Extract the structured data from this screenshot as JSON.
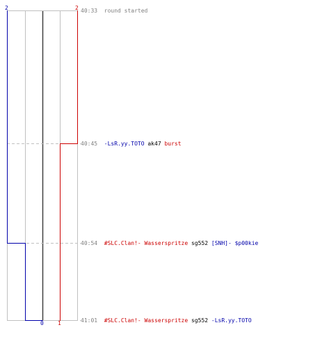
{
  "colors": {
    "blue": "#0000aa",
    "red": "#cc0000",
    "gray": "#808080",
    "grid": "#c0c0c0",
    "center": "#404040"
  },
  "scores": {
    "top_left": "2",
    "top_right": "2",
    "bottom_left": "0",
    "bottom_right": "1"
  },
  "events": [
    {
      "time": "40:33",
      "parts": [
        {
          "text": "round started",
          "color": "gray"
        }
      ]
    },
    {
      "time": "40:45",
      "parts": [
        {
          "text": "-LsR.yy.TOTO",
          "color": "blue"
        },
        {
          "text": " ak47 ",
          "color": "black"
        },
        {
          "text": "burst",
          "color": "red"
        }
      ]
    },
    {
      "time": "40:54",
      "parts": [
        {
          "text": "#SLC.Clan!- Wasserspritze",
          "color": "red"
        },
        {
          "text": " sg552 ",
          "color": "black"
        },
        {
          "text": "[SNH]- $p00kie",
          "color": "blue"
        }
      ]
    },
    {
      "time": "41:01",
      "parts": [
        {
          "text": "#SLC.Clan!- Wasserspritze",
          "color": "red"
        },
        {
          "text": " sg552 ",
          "color": "black"
        },
        {
          "text": "-LsR.yy.TOTO",
          "color": "blue"
        }
      ]
    }
  ]
}
